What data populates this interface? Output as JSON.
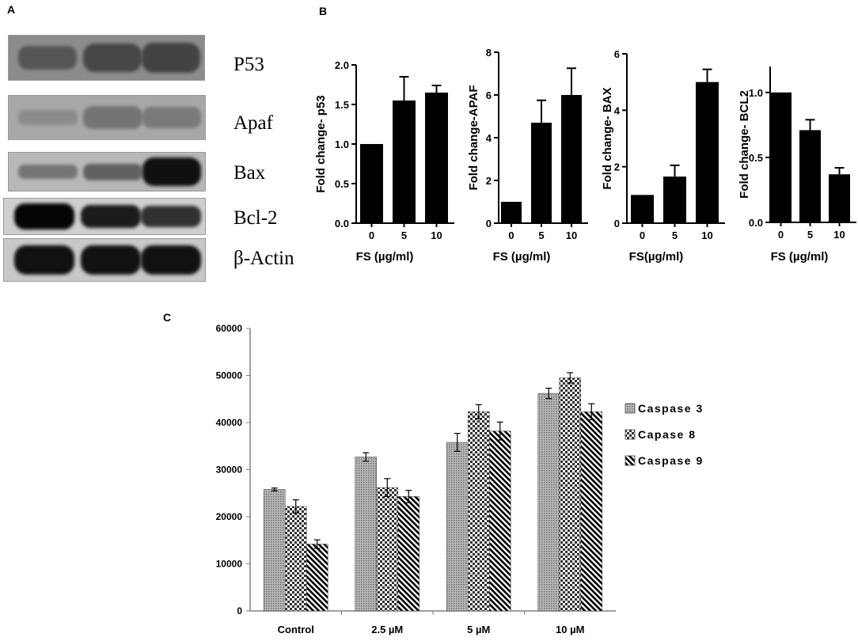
{
  "panels": {
    "a": "A",
    "b": "B",
    "c": "C"
  },
  "blot": {
    "lanes": 3,
    "rows": [
      {
        "label": "P53",
        "bg": "#8c8c8c",
        "band": "#3a3a3a",
        "intensity": [
          0.55,
          0.8,
          0.85
        ]
      },
      {
        "label": "Apaf",
        "bg": "#a8a8a8",
        "band": "#5a5a5a",
        "intensity": [
          0.15,
          0.55,
          0.45
        ]
      },
      {
        "label": "Bax",
        "bg": "#b8b8b8",
        "band": "#101010",
        "intensity": [
          0.2,
          0.35,
          1.0
        ]
      },
      {
        "label": "Bcl-2",
        "bg": "#cfcfcf",
        "band": "#050505",
        "intensity": [
          1.0,
          0.85,
          0.7
        ]
      },
      {
        "label": "β-Actin",
        "bg": "#c8c8c8",
        "band": "#0a0a0a",
        "intensity": [
          0.95,
          0.95,
          0.95
        ]
      }
    ]
  },
  "chart_data": [
    {
      "type": "bar",
      "ylabel": "Fold change- p53",
      "xlabel": "FS (µg/ml)",
      "categories": [
        "0",
        "5",
        "10"
      ],
      "values": [
        1.0,
        1.55,
        1.65
      ],
      "errors": [
        0,
        0.3,
        0.09
      ],
      "ylim": [
        0,
        2.0
      ],
      "yticks": [
        "0.0",
        "0.5",
        "1.0",
        "1.5",
        "2.0"
      ],
      "ytick_values": [
        0,
        0.5,
        1.0,
        1.5,
        2.0
      ]
    },
    {
      "type": "bar",
      "ylabel": "Fold change-APAF",
      "xlabel": "FS (µg/ml)",
      "categories": [
        "0",
        "5",
        "10"
      ],
      "values": [
        1.0,
        4.7,
        6.0
      ],
      "errors": [
        0,
        1.05,
        1.25
      ],
      "ylim": [
        0,
        8
      ],
      "yticks": [
        "0",
        "2",
        "4",
        "6",
        "8"
      ],
      "ytick_values": [
        0,
        2,
        4,
        6,
        8
      ]
    },
    {
      "type": "bar",
      "ylabel": "Fold change- BAX",
      "xlabel": "FS(µg/ml)",
      "categories": [
        "0",
        "5",
        "10"
      ],
      "values": [
        1.0,
        1.65,
        5.0
      ],
      "errors": [
        0,
        0.4,
        0.45
      ],
      "ylim": [
        0,
        6
      ],
      "yticks": [
        "0",
        "2",
        "4",
        "6"
      ],
      "ytick_values": [
        0,
        2,
        4,
        6
      ]
    },
    {
      "type": "bar",
      "ylabel": "Fold change- BCL2",
      "xlabel": "FS (µg/ml)",
      "categories": [
        "0",
        "5",
        "10"
      ],
      "values": [
        1.0,
        0.71,
        0.37
      ],
      "errors": [
        0,
        0.08,
        0.05
      ],
      "ylim": [
        0,
        1.2
      ],
      "yticks": [
        "0.0",
        "0.5",
        "1.0"
      ],
      "ytick_values": [
        0,
        0.5,
        1.0
      ]
    },
    {
      "type": "bar",
      "categories": [
        "Control",
        "2.5 µM",
        "5 µM",
        "10 µM"
      ],
      "series": [
        {
          "name": "Caspase 3",
          "values": [
            25800,
            32700,
            35800,
            46200
          ],
          "errors": [
            300,
            900,
            1900,
            1100
          ],
          "pattern": "dots",
          "color": "#999999"
        },
        {
          "name": "Capase 8",
          "values": [
            22200,
            26200,
            42300,
            49500
          ],
          "errors": [
            1400,
            1900,
            1500,
            1100
          ],
          "pattern": "checker",
          "color": "#ffffff"
        },
        {
          "name": "Caspase 9",
          "values": [
            14200,
            24300,
            38200,
            42300
          ],
          "errors": [
            900,
            1300,
            1900,
            1700
          ],
          "pattern": "diag",
          "color": "#ffffff"
        }
      ],
      "ylim": [
        0,
        60000
      ],
      "yticks": [
        "0",
        "10000",
        "20000",
        "30000",
        "40000",
        "50000",
        "60000"
      ],
      "ytick_values": [
        0,
        10000,
        20000,
        30000,
        40000,
        50000,
        60000
      ],
      "legend": "right"
    }
  ]
}
